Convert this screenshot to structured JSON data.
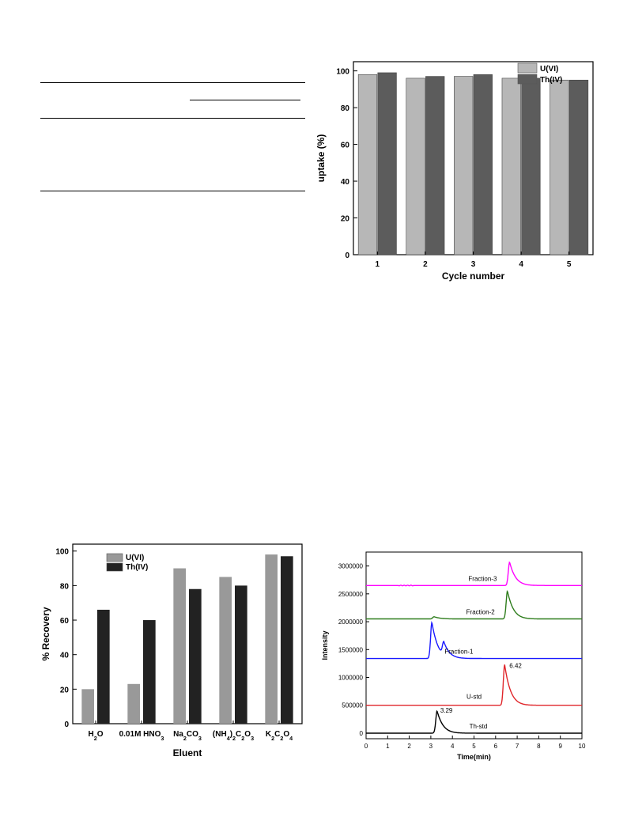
{
  "table_rules": "",
  "chart_data": [
    {
      "id": "cycle",
      "type": "bar",
      "xlabel": "Cycle number",
      "ylabel": "uptake (%)",
      "categories": [
        "1",
        "2",
        "3",
        "4",
        "5"
      ],
      "series": [
        {
          "name": "U(VI)",
          "color": "#b7b7b7",
          "values": [
            98,
            96,
            97,
            96,
            95
          ]
        },
        {
          "name": "Th(IV)",
          "color": "#5c5c5c",
          "values": [
            99,
            97,
            98,
            96,
            95
          ]
        }
      ],
      "ylim": [
        0,
        105
      ],
      "yticks": [
        0,
        20,
        40,
        60,
        80,
        100
      ],
      "legend": "top-right",
      "grid": false
    },
    {
      "id": "eluent",
      "type": "bar",
      "xlabel": "Eluent",
      "ylabel": "% Recovery",
      "categories": [
        "H2O",
        "0.01M HNO3",
        "Na2CO3",
        "(NH4)2C2O3",
        "K2C2O4"
      ],
      "series": [
        {
          "name": "U(VI)",
          "color": "#999999",
          "values": [
            20,
            23,
            90,
            85,
            98
          ]
        },
        {
          "name": "Th(IV)",
          "color": "#222222",
          "values": [
            66,
            60,
            78,
            80,
            97
          ]
        }
      ],
      "ylim": [
        0,
        104
      ],
      "yticks": [
        0,
        20,
        40,
        60,
        80,
        100
      ],
      "legend": "top-left",
      "grid": false
    },
    {
      "id": "chromatogram",
      "type": "line",
      "xlabel": "Time(min)",
      "ylabel": "Intensity",
      "xlim": [
        0,
        10
      ],
      "ylim": [
        -100000,
        3250000
      ],
      "xticks": [
        0,
        1,
        2,
        3,
        4,
        5,
        6,
        7,
        8,
        9,
        10
      ],
      "yticks": [
        0,
        500000,
        1000000,
        1500000,
        2000000,
        2500000,
        3000000
      ],
      "series": [
        {
          "name": "Fraction-3",
          "color": "#ff00ff",
          "baseline": 2650000,
          "peaks": [
            {
              "t": 6.65,
              "h": 420000
            }
          ]
        },
        {
          "name": "Fraction-2",
          "color": "#2e7d1c",
          "baseline": 2050000,
          "peaks": [
            {
              "t": 3.15,
              "h": 40000
            },
            {
              "t": 6.55,
              "h": 500000
            }
          ]
        },
        {
          "name": "Fraction-1",
          "color": "#1a1aff",
          "baseline": 1340000,
          "peaks": [
            {
              "t": 3.05,
              "h": 650000
            },
            {
              "t": 3.6,
              "h": 230000
            }
          ]
        },
        {
          "name": "U-std",
          "color": "#e0262b",
          "baseline": 500000,
          "peaks": [
            {
              "t": 6.42,
              "h": 730000
            }
          ]
        },
        {
          "name": "Th-std",
          "color": "#000000",
          "baseline": 0,
          "peaks": [
            {
              "t": 3.29,
              "h": 400000
            }
          ]
        }
      ],
      "annotations": [
        "6.42",
        "3.29"
      ]
    }
  ]
}
